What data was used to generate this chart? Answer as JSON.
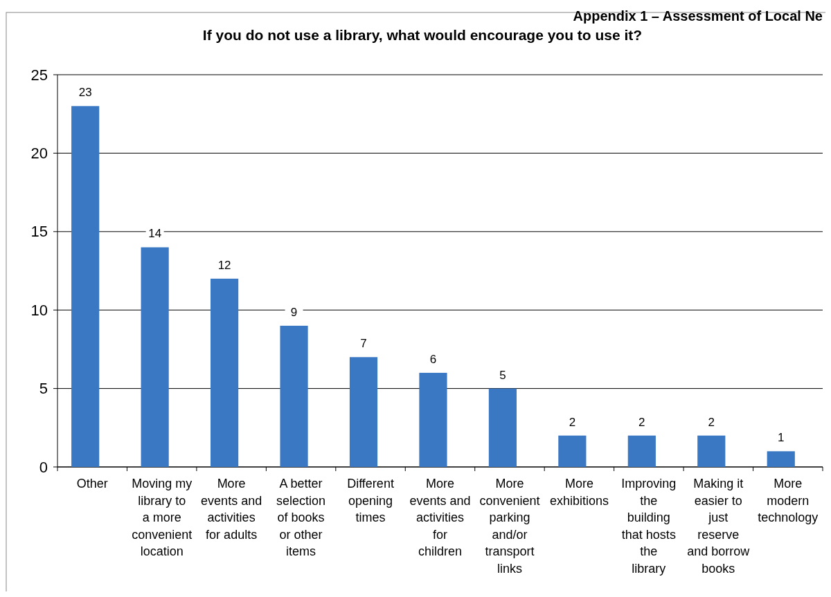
{
  "chart_data": {
    "type": "bar",
    "title": "If you do not use a library, what would encourage you to use it?",
    "annotations": [
      "Appendix 1 – Assessment of Local Ne"
    ],
    "categories": [
      "Other",
      "Moving my library to a more convenient location",
      "More events and activities for adults",
      "A better selection of books or other items",
      "Different opening times",
      "More events and activities for children",
      "More convenient parking and/or transport links",
      "More exhibitions",
      "Improving the building that hosts the library",
      "Making it easier to just reserve and borrow books",
      "More modern technology"
    ],
    "values": [
      23,
      14,
      12,
      9,
      7,
      6,
      5,
      2,
      2,
      2,
      1
    ],
    "color": "#3a78c4",
    "ylim": [
      0,
      25
    ],
    "yticks": [
      0,
      5,
      10,
      15,
      20,
      25
    ],
    "grid": "y",
    "data_labels": true
  }
}
